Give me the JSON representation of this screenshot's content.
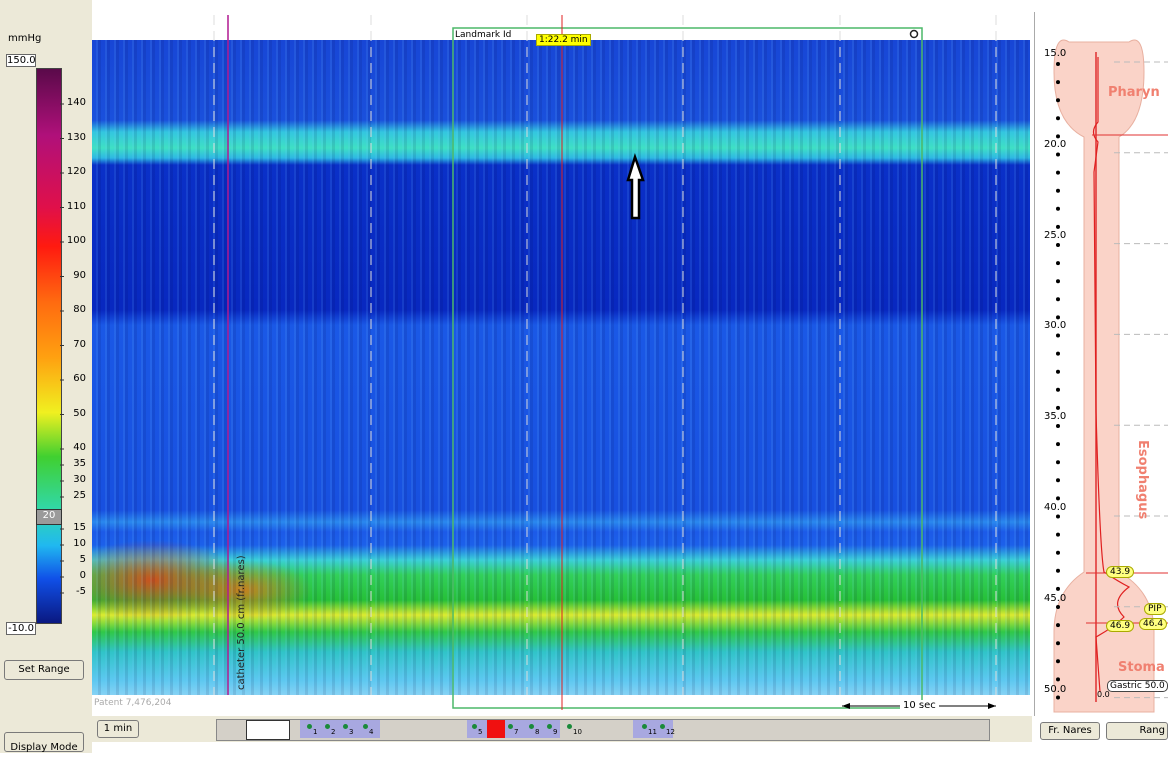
{
  "left_panel": {
    "unit": "mmHg",
    "max": "150.0",
    "ticks": [
      140,
      130,
      120,
      110,
      100,
      90,
      80,
      70,
      60,
      50,
      40,
      35,
      30,
      25,
      15,
      10,
      5,
      0,
      -5
    ],
    "marker": "20",
    "min": "-10.0",
    "set_range": "Set Range",
    "display_mode": "Display Mode"
  },
  "plot": {
    "landmark_label": "Landmark Id",
    "time": "1:22.2 min",
    "catheter": "catheter 50.0 cm (fr.nares)",
    "patent": "Patent 7,476,204",
    "scale": "10 sec"
  },
  "right_panel": {
    "depths": [
      "15.0",
      "20.0",
      "25.0",
      "30.0",
      "35.0",
      "40.0",
      "45.0",
      "50.0"
    ],
    "regions": [
      "Pharyn",
      "Esophagus",
      "Stoma"
    ],
    "markers": [
      "43.9",
      "PIP",
      "46.4",
      "46.9"
    ],
    "gastric": "Gastric 50.0",
    "zero": "0.0",
    "button": "Fr. Nares",
    "range_button": "Rang"
  },
  "toolbar": {
    "interval": "1 min",
    "thumbs": [
      "1",
      "2",
      "3",
      "4",
      "5",
      "7",
      "8",
      "9",
      "10",
      "11",
      "12"
    ]
  }
}
